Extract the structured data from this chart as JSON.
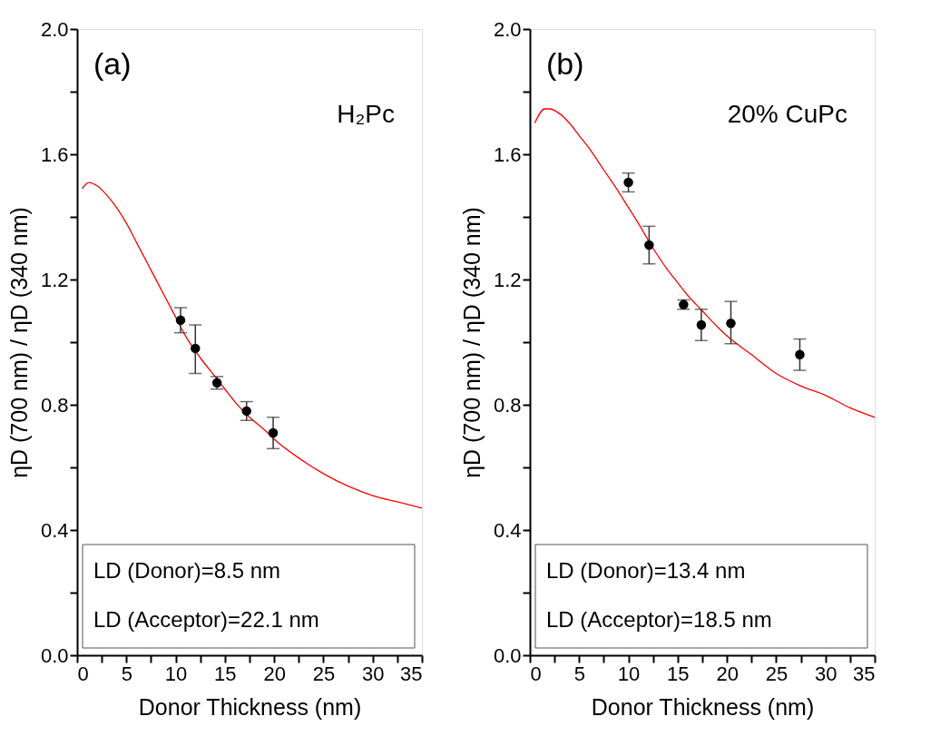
{
  "chart_data": [
    {
      "type": "scatter",
      "xlabel": "Donor Thickness (nm)",
      "ylabel": "ηD (700 nm) / ηD (340 nm)",
      "annotations": [
        "(a)",
        "H₂Pc",
        "LD (Donor)=8.5 nm",
        "LD (Acceptor)=22.1 nm"
      ],
      "grid": false,
      "xlim": [
        0,
        35
      ],
      "ylim": [
        0,
        2.0
      ],
      "xticks": [
        0,
        {
          "value": 2.5,
          "label": null
        },
        5,
        {
          "value": 7.5,
          "label": null
        },
        10,
        {
          "value": 12.5,
          "label": null
        },
        15,
        {
          "value": 17.5,
          "label": null
        },
        20,
        {
          "value": 22.5,
          "label": null
        },
        25,
        {
          "value": 27.5,
          "label": null
        },
        30,
        {
          "value": 32.5,
          "label": null
        },
        35
      ],
      "yticks": [
        {
          "value": 0,
          "label": "0.0"
        },
        {
          "value": 0.2,
          "label": null
        },
        {
          "value": 0.4,
          "label": "0.4"
        },
        {
          "value": 0.6,
          "label": null
        },
        {
          "value": 0.8,
          "label": "0.8"
        },
        {
          "value": 1.0,
          "label": null
        },
        {
          "value": 1.2,
          "label": "1.2"
        },
        {
          "value": 1.4,
          "label": null
        },
        {
          "value": 1.6,
          "label": "1.6"
        },
        {
          "value": 1.8,
          "label": null
        },
        {
          "value": 2.0,
          "label": "2.0"
        }
      ],
      "series": [
        {
          "type": "line",
          "marker": "none",
          "color": "#ff0000",
          "x": [
            0.5,
            1.2,
            2,
            3,
            4,
            5,
            6,
            7.5,
            9,
            10,
            11,
            12.5,
            14,
            15,
            16,
            17.5,
            19,
            20,
            22.5,
            25,
            27.5,
            30,
            32.5,
            35
          ],
          "values": [
            1.49,
            1.51,
            1.5,
            1.47,
            1.43,
            1.38,
            1.32,
            1.23,
            1.14,
            1.08,
            1.02,
            0.95,
            0.89,
            0.85,
            0.81,
            0.76,
            0.72,
            0.69,
            0.63,
            0.58,
            0.54,
            0.51,
            0.49,
            0.47
          ]
        },
        {
          "marker": "circle",
          "color": "#000000",
          "x": [
            10.5,
            12.0,
            14.2,
            17.2,
            19.9
          ],
          "values": [
            1.07,
            0.98,
            0.87,
            0.78,
            0.71
          ],
          "errors": [
            0.04,
            [
              0.9,
              1.055
            ],
            0.02,
            0.03,
            0.05
          ]
        }
      ]
    },
    {
      "type": "scatter",
      "xlabel": "Donor Thickness (nm)",
      "ylabel": "ηD (700 nm) / ηD (340 nm)",
      "annotations": [
        "(b)",
        "20% CuPc",
        "LD (Donor)=13.4 nm",
        "LD (Acceptor)=18.5 nm"
      ],
      "grid": false,
      "xlim": [
        0,
        35
      ],
      "ylim": [
        0,
        2.0
      ],
      "xticks": [
        0,
        {
          "value": 2.5,
          "label": null
        },
        5,
        {
          "value": 7.5,
          "label": null
        },
        10,
        {
          "value": 12.5,
          "label": null
        },
        15,
        {
          "value": 17.5,
          "label": null
        },
        20,
        {
          "value": 22.5,
          "label": null
        },
        25,
        {
          "value": 27.5,
          "label": null
        },
        30,
        {
          "value": 32.5,
          "label": null
        },
        35
      ],
      "yticks": [
        {
          "value": 0,
          "label": "0.0"
        },
        {
          "value": 0.2,
          "label": null
        },
        {
          "value": 0.4,
          "label": "0.4"
        },
        {
          "value": 0.6,
          "label": null
        },
        {
          "value": 0.8,
          "label": "0.8"
        },
        {
          "value": 1.0,
          "label": null
        },
        {
          "value": 1.2,
          "label": "1.2"
        },
        {
          "value": 1.4,
          "label": null
        },
        {
          "value": 1.6,
          "label": "1.6"
        },
        {
          "value": 1.8,
          "label": null
        },
        {
          "value": 2.0,
          "label": "2.0"
        }
      ],
      "series": [
        {
          "type": "line",
          "marker": "none",
          "color": "#ff0000",
          "x": [
            0.5,
            1.5,
            2,
            3,
            4,
            5,
            6,
            7.5,
            9,
            10,
            11,
            12.5,
            14,
            15,
            16,
            17.5,
            19,
            20,
            22.5,
            25,
            27.5,
            30,
            32.5,
            35
          ],
          "values": [
            1.7,
            1.745,
            1.745,
            1.73,
            1.7,
            1.66,
            1.62,
            1.55,
            1.48,
            1.43,
            1.38,
            1.3,
            1.23,
            1.19,
            1.15,
            1.1,
            1.05,
            1.02,
            0.96,
            0.9,
            0.86,
            0.83,
            0.79,
            0.76
          ]
        },
        {
          "marker": "circle",
          "color": "#000000",
          "x": [
            10.0,
            12.1,
            15.6,
            17.4,
            20.4,
            27.4
          ],
          "values": [
            1.51,
            1.31,
            1.12,
            1.055,
            1.06,
            0.96
          ],
          "errors": [
            0.03,
            [
              1.25,
              1.37
            ],
            0.015,
            0.05,
            [
              0.995,
              1.13
            ],
            0.05
          ]
        }
      ]
    }
  ]
}
